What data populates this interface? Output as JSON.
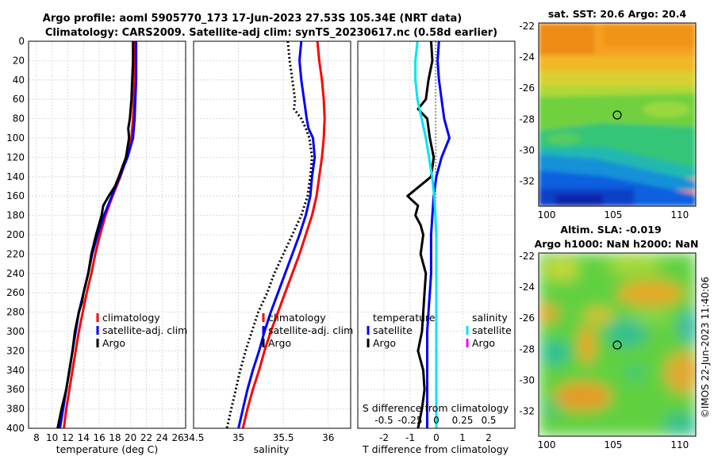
{
  "header": {
    "title_line1": "Argo profile: aoml 5905770_173 17-Jun-2023 27.53S 105.34E (NRT data)",
    "title_line2": "Climatology: CARS2009. Satellite-adj clim: synTS_20230617.nc (0.58d earlier)"
  },
  "depth_ticks": [
    "0",
    "20",
    "40",
    "60",
    "80",
    "100",
    "120",
    "140",
    "160",
    "180",
    "200",
    "220",
    "240",
    "260",
    "280",
    "300",
    "320",
    "340",
    "360",
    "380",
    "400"
  ],
  "colors": {
    "climatology": "#ff0000",
    "satellite": "#0000ff",
    "argo": "#000000",
    "sal_satellite": "#00e5ee",
    "sal_argo": "#ff00ff"
  },
  "chart_data": [
    {
      "name": "temperature",
      "type": "line",
      "xlabel": "temperature (deg C)",
      "ylabel": "depth",
      "xlim": [
        7,
        27
      ],
      "ylim": [
        400,
        0
      ],
      "xticks": [
        8,
        10,
        12,
        14,
        16,
        18,
        20,
        22,
        24,
        26
      ],
      "legend": {
        "position": "lower-right",
        "entries": [
          "climatology",
          "satellite-adj. clim",
          "Argo"
        ]
      },
      "series": [
        {
          "name": "climatology",
          "depth": [
            0,
            20,
            40,
            60,
            80,
            100,
            120,
            140,
            160,
            180,
            200,
            220,
            240,
            260,
            280,
            300,
            320,
            340,
            360,
            380,
            400
          ],
          "values": [
            20.5,
            20.5,
            20.5,
            20.4,
            20.3,
            20.1,
            19.5,
            18.7,
            17.7,
            16.8,
            16.1,
            15.5,
            15.0,
            14.4,
            13.9,
            13.4,
            13.0,
            12.6,
            12.2,
            11.8,
            11.5
          ]
        },
        {
          "name": "satellite-adj. clim",
          "depth": [
            0,
            20,
            40,
            60,
            80,
            100,
            120,
            140,
            160,
            180,
            200,
            220,
            240,
            260,
            280,
            300,
            320,
            340,
            360,
            380,
            400
          ],
          "values": [
            20.7,
            20.7,
            20.7,
            20.6,
            20.5,
            20.3,
            19.6,
            18.6,
            17.6,
            16.6,
            15.8,
            15.1,
            14.6,
            14.0,
            13.4,
            13.0,
            12.6,
            12.2,
            11.8,
            11.4,
            11.0
          ]
        },
        {
          "name": "Argo",
          "depth": [
            0,
            20,
            40,
            60,
            80,
            90,
            100,
            120,
            140,
            150,
            160,
            170,
            180,
            200,
            220,
            240,
            260,
            270,
            280,
            300,
            320,
            340,
            360,
            380,
            400
          ],
          "values": [
            20.3,
            20.3,
            20.2,
            20.1,
            19.9,
            19.7,
            19.8,
            19.4,
            18.5,
            18.0,
            17.2,
            16.5,
            16.3,
            15.6,
            15.0,
            14.6,
            14.0,
            13.8,
            13.4,
            12.9,
            12.6,
            12.2,
            11.8,
            11.2,
            10.7
          ]
        }
      ]
    },
    {
      "name": "salinity",
      "type": "line",
      "xlabel": "salinity",
      "ylabel": "depth",
      "xlim": [
        34.5,
        36.25
      ],
      "ylim": [
        400,
        0
      ],
      "xticks": [
        34.5,
        35,
        35.5,
        36
      ],
      "xticklabels": [
        "34.5",
        "35",
        "35.5",
        "36"
      ],
      "legend": {
        "position": "lower-right",
        "entries": [
          "climatology",
          "satellite-adj. clim",
          "Argo"
        ]
      },
      "series": [
        {
          "name": "climatology",
          "depth": [
            0,
            20,
            40,
            60,
            80,
            100,
            120,
            140,
            160,
            180,
            200,
            220,
            240,
            260,
            280,
            300,
            320,
            340,
            360,
            380,
            400
          ],
          "values": [
            35.88,
            35.9,
            35.93,
            35.95,
            35.96,
            35.95,
            35.93,
            35.9,
            35.87,
            35.82,
            35.75,
            35.68,
            35.6,
            35.52,
            35.44,
            35.36,
            35.29,
            35.23,
            35.16,
            35.1,
            35.05
          ]
        },
        {
          "name": "satellite-adj. clim",
          "depth": [
            0,
            20,
            40,
            60,
            80,
            90,
            100,
            120,
            140,
            160,
            180,
            200,
            220,
            240,
            260,
            280,
            300,
            320,
            340,
            360,
            380,
            400
          ],
          "values": [
            35.7,
            35.68,
            35.7,
            35.73,
            35.76,
            35.78,
            35.83,
            35.85,
            35.82,
            35.8,
            35.75,
            35.68,
            35.6,
            35.52,
            35.44,
            35.36,
            35.29,
            35.23,
            35.16,
            35.1,
            35.05,
            35.0
          ]
        },
        {
          "name": "Argo",
          "depth": [
            0,
            20,
            40,
            60,
            70,
            80,
            90,
            100,
            120,
            140,
            160,
            180,
            200,
            220,
            240,
            260,
            280,
            300,
            320,
            340,
            360,
            380,
            400
          ],
          "values": [
            35.55,
            35.57,
            35.6,
            35.63,
            35.62,
            35.7,
            35.75,
            35.79,
            35.82,
            35.8,
            35.77,
            35.7,
            35.6,
            35.5,
            35.4,
            35.32,
            35.22,
            35.15,
            35.08,
            35.02,
            34.97,
            34.92,
            34.87
          ]
        }
      ]
    },
    {
      "name": "difference",
      "type": "line",
      "xlabel": "T difference from climatology",
      "top_axis_label": "S difference from climatology",
      "xlim": [
        -3,
        3
      ],
      "ylim": [
        400,
        0
      ],
      "xticks": [
        -2,
        -1,
        0,
        1,
        2
      ],
      "xticklabels": [
        "-2",
        "-1",
        "0",
        "1",
        "2"
      ],
      "s_ticklabels": [
        "-0.5",
        "-0.25",
        "0",
        "0.25",
        "0.5"
      ],
      "s_scale": 4,
      "legend_left": {
        "heading": "temperature",
        "entries": [
          "satellite",
          "Argo"
        ]
      },
      "legend_right": {
        "heading": "salinity",
        "entries": [
          "satellite",
          "Argo"
        ]
      },
      "series": [
        {
          "name": "T satellite",
          "depth": [
            0,
            20,
            40,
            60,
            80,
            90,
            100,
            120,
            140,
            160,
            180,
            200,
            220,
            240,
            260,
            280,
            300,
            320,
            340,
            360,
            380,
            400
          ],
          "values": [
            0.1,
            0.05,
            0.1,
            0.2,
            0.3,
            0.4,
            0.5,
            0.2,
            0.0,
            -0.1,
            -0.15,
            -0.2,
            -0.2,
            -0.2,
            -0.25,
            -0.3,
            -0.35,
            -0.35,
            -0.35,
            -0.35,
            -0.35,
            -0.35
          ]
        },
        {
          "name": "T Argo",
          "depth": [
            0,
            20,
            40,
            60,
            70,
            80,
            100,
            120,
            140,
            160,
            170,
            180,
            190,
            200,
            220,
            240,
            260,
            280,
            300,
            320,
            340,
            360,
            380,
            400
          ],
          "values": [
            -0.2,
            -0.15,
            -0.3,
            -0.4,
            -0.7,
            -0.35,
            -0.25,
            -0.1,
            -0.2,
            -1.1,
            -0.7,
            -0.8,
            -0.6,
            -0.5,
            -0.6,
            -0.4,
            -0.45,
            -0.5,
            -0.55,
            -0.7,
            -0.5,
            -0.45,
            -0.55,
            -0.7
          ]
        },
        {
          "name": "S satellite",
          "depth": [
            0,
            20,
            40,
            60,
            80,
            100,
            120,
            140,
            160,
            180,
            200,
            240,
            280,
            320,
            360,
            400
          ],
          "values": [
            -0.18,
            -0.2,
            -0.2,
            -0.18,
            -0.14,
            -0.1,
            -0.07,
            -0.04,
            -0.02,
            -0.01,
            0.0,
            0.0,
            0.0,
            0.0,
            0.0,
            0.0
          ]
        },
        {
          "name": "S Argo",
          "depth": [
            0,
            400
          ],
          "values": [
            0.0,
            0.0
          ]
        }
      ]
    }
  ],
  "maps": [
    {
      "name": "sst-map",
      "title": "sat. SST: 20.6 Argo: 20.4",
      "xticks": [
        "100",
        "105",
        "110"
      ],
      "yticks": [
        "-22",
        "-24",
        "-26",
        "-28",
        "-30",
        "-32"
      ],
      "marker": {
        "lon": 105.34,
        "lat": -27.53
      }
    },
    {
      "name": "sla-map",
      "title_line1": "Altim. SLA: -0.019",
      "title_line2": "Argo h1000: NaN h2000: NaN",
      "xticks": [
        "100",
        "105",
        "110"
      ],
      "yticks": [
        "-22",
        "-24",
        "-26",
        "-28",
        "-30",
        "-32"
      ],
      "marker": {
        "lon": 105.34,
        "lat": -27.53
      }
    }
  ],
  "watermark": "©IMOS 22-Jun-2023 11:40:06"
}
